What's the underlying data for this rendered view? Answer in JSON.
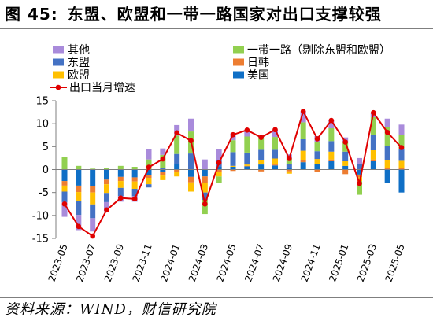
{
  "figure_label": "图 45:",
  "source": "资料来源：WIND，财信研究院",
  "chart_data": {
    "type": "bar",
    "stacked": true,
    "title": "东盟、欧盟和一带一路国家对出口支撑较强",
    "x": [
      "2023-05",
      "2023-06",
      "2023-07",
      "2023-08",
      "2023-09",
      "2023-10",
      "2023-11",
      "2023-12",
      "2024-01",
      "2024-02",
      "2024-03",
      "2024-04",
      "2024-05",
      "2024-06",
      "2024-07",
      "2024-08",
      "2024-09",
      "2024-10",
      "2024-11",
      "2024-12",
      "2025-01",
      "2025-02",
      "2025-03",
      "2025-04",
      "2025-05"
    ],
    "xtick_labels": [
      "2023-05",
      "2023-07",
      "2023-09",
      "2023-11",
      "2024-01",
      "2024-03",
      "2024-05",
      "2024-07",
      "2024-09",
      "2024-11",
      "2025-01",
      "2025-03",
      "2025-05"
    ],
    "ylim": [
      -15,
      15
    ],
    "yticks": [
      -15,
      -10,
      -5,
      0,
      5,
      10,
      15
    ],
    "grid": false,
    "legend": "top",
    "series": [
      {
        "name": "美国",
        "color": "#0F6FC6",
        "values": [
          -2.5,
          -3.5,
          -3.6,
          -2.2,
          -1.6,
          -1.7,
          -1.2,
          -0.5,
          1.2,
          -1.6,
          -1.5,
          0.6,
          0.6,
          0.7,
          1.1,
          0.9,
          0.3,
          1.6,
          1.2,
          1.8,
          0.8,
          -1.1,
          1.8,
          -3.0,
          -5.0
        ]
      },
      {
        "name": "日韩",
        "color": "#ED7D31",
        "values": [
          -1.0,
          -1.4,
          -1.4,
          -1.0,
          -0.9,
          -0.9,
          -0.6,
          -0.8,
          -0.5,
          -1.2,
          -1.4,
          -0.6,
          -0.3,
          0.1,
          -0.4,
          0.2,
          -0.4,
          0.5,
          -0.6,
          0.4,
          -1.0,
          -0.6,
          0.4,
          0.3,
          0.4
        ]
      },
      {
        "name": "欧盟",
        "color": "#FFC000",
        "values": [
          -1.3,
          -2.0,
          -2.6,
          -1.9,
          -1.5,
          -1.6,
          -1.4,
          -1.0,
          -1.0,
          -2.0,
          -2.1,
          -0.9,
          0.2,
          0.3,
          1.0,
          1.3,
          -0.5,
          2.0,
          1.1,
          1.7,
          1.0,
          -0.8,
          2.0,
          1.8,
          1.5
        ]
      },
      {
        "name": "东盟",
        "color": "#4472C4",
        "values": [
          -2.3,
          -3.0,
          -3.0,
          -2.0,
          -1.8,
          -1.6,
          -0.7,
          0.4,
          2.2,
          3.5,
          -1.6,
          1.5,
          3.0,
          2.6,
          2.2,
          1.9,
          0.9,
          2.5,
          1.7,
          2.3,
          2.1,
          1.2,
          3.3,
          3.1,
          2.5
        ]
      },
      {
        "name": "一带一路（剔除东盟和欧盟）",
        "color": "#92D050",
        "values": [
          2.8,
          0.8,
          0.2,
          0.3,
          0.8,
          0.6,
          2.2,
          2.8,
          4.0,
          4.8,
          -3.1,
          -1.5,
          2.6,
          3.5,
          2.5,
          2.8,
          1.2,
          3.7,
          2.0,
          2.8,
          2.0,
          -3.0,
          3.9,
          4.1,
          3.2
        ]
      },
      {
        "name": "其他",
        "color": "#A98BDB",
        "values": [
          -3.2,
          -3.3,
          -2.9,
          -2.0,
          -1.2,
          -1.2,
          2.2,
          1.4,
          2.3,
          2.8,
          2.2,
          2.4,
          1.5,
          1.4,
          0.6,
          1.6,
          0.9,
          2.4,
          1.3,
          1.7,
          1.1,
          1.3,
          1.0,
          1.8,
          2.2
        ]
      }
    ],
    "line_series": {
      "name": "出口当月增速",
      "color": "#E00000",
      "values": [
        -7.5,
        -12.4,
        -14.5,
        -8.8,
        -6.2,
        -6.4,
        0.5,
        2.3,
        8.0,
        6.3,
        -7.5,
        1.5,
        7.6,
        8.6,
        7.0,
        8.7,
        2.4,
        12.7,
        6.7,
        10.7,
        6.0,
        -3.0,
        12.4,
        8.1,
        4.8
      ]
    }
  }
}
